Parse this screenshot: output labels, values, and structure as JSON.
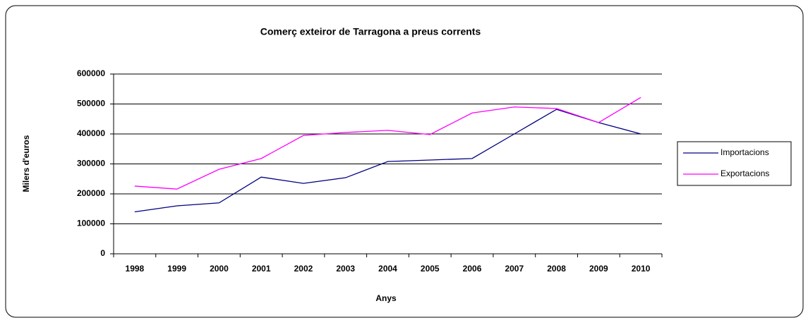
{
  "chart_data": {
    "type": "line",
    "title": "Comerç exteiror de Tarragona a preus corrents",
    "xlabel": "Anys",
    "ylabel": "Milers d'euros",
    "categories": [
      "1998",
      "1999",
      "2000",
      "2001",
      "2002",
      "2003",
      "2004",
      "2005",
      "2006",
      "2007",
      "2008",
      "2009",
      "2010"
    ],
    "series": [
      {
        "name": "Importacions",
        "color": "#000080",
        "values": [
          140000,
          160000,
          170000,
          256000,
          235000,
          254000,
          308000,
          313000,
          318000,
          400000,
          482000,
          438000,
          400000
        ]
      },
      {
        "name": "Exportacions",
        "color": "#ff00ff",
        "values": [
          226000,
          216000,
          282000,
          318000,
          395000,
          405000,
          412000,
          398000,
          470000,
          490000,
          485000,
          438000,
          522000
        ]
      }
    ],
    "ylim": [
      0,
      600000
    ],
    "yticks": [
      0,
      100000,
      200000,
      300000,
      400000,
      500000,
      600000
    ],
    "grid": true,
    "legend": "right"
  }
}
